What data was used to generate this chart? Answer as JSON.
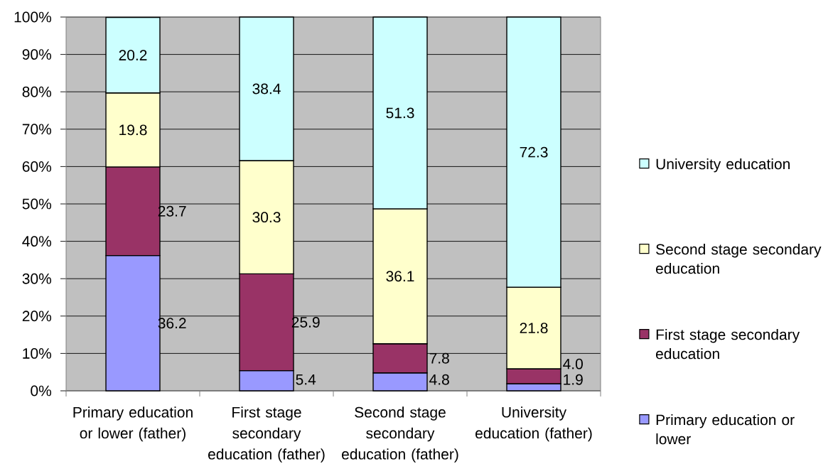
{
  "chart_data": {
    "type": "bar",
    "stacked": true,
    "categories": [
      "Primary education or lower (father)",
      "First stage secondary education (father)",
      "Second stage secondary education (father)",
      "University education (father)"
    ],
    "series": [
      {
        "name": "Primary education or lower",
        "color": "#9999ff",
        "values": [
          36.2,
          5.4,
          4.8,
          1.9
        ],
        "value_labels": [
          "36.2",
          "5.4",
          "4.8",
          "1.9"
        ]
      },
      {
        "name": "First stage secondary education",
        "color": "#993366",
        "values": [
          23.7,
          25.9,
          7.8,
          4.0
        ],
        "value_labels": [
          "23.7",
          "25.9",
          "7.8",
          "4.0"
        ]
      },
      {
        "name": "Second stage secondary education",
        "color": "#ffffcc",
        "values": [
          19.8,
          30.3,
          36.1,
          21.8
        ],
        "value_labels": [
          "19.8",
          "30.3",
          "36.1",
          "21.8"
        ]
      },
      {
        "name": "University education",
        "color": "#ccffff",
        "values": [
          20.2,
          38.4,
          51.3,
          72.3
        ],
        "value_labels": [
          "20.2",
          "38.4",
          "51.3",
          "72.3"
        ]
      }
    ],
    "ylim": [
      0,
      100
    ],
    "yticks": [
      {
        "value": 0,
        "label": "0%"
      },
      {
        "value": 10,
        "label": "10%"
      },
      {
        "value": 20,
        "label": "20%"
      },
      {
        "value": 30,
        "label": "30%"
      },
      {
        "value": 40,
        "label": "40%"
      },
      {
        "value": 50,
        "label": "50%"
      },
      {
        "value": 60,
        "label": "60%"
      },
      {
        "value": 70,
        "label": "70%"
      },
      {
        "value": 80,
        "label": "80%"
      },
      {
        "value": 90,
        "label": "90%"
      },
      {
        "value": 100,
        "label": "100%"
      }
    ],
    "grid": "y",
    "legend": "right"
  }
}
